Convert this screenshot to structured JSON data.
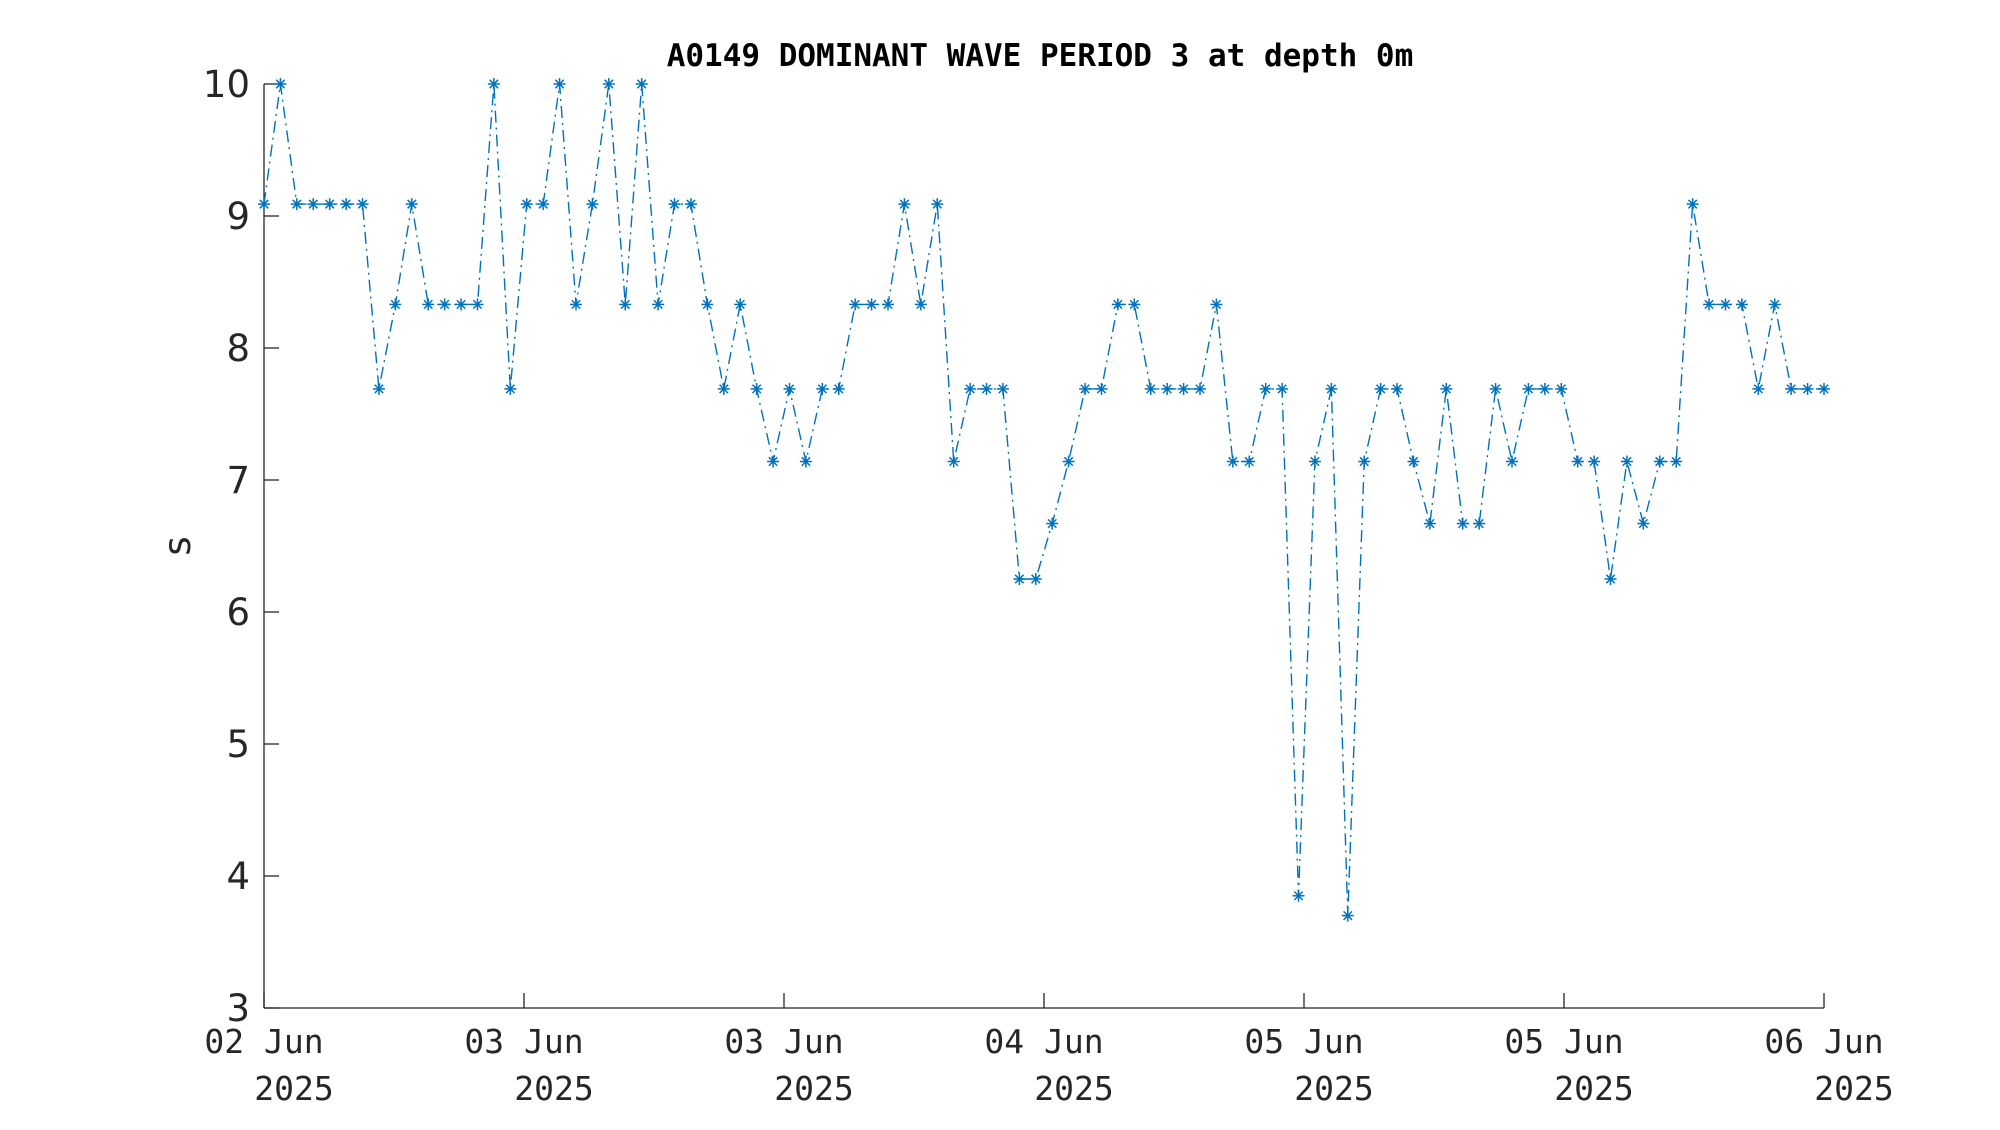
{
  "chart_data": {
    "type": "line",
    "title": "A0149 DOMINANT WAVE PERIOD 3 at depth 0m",
    "xlabel": "",
    "ylabel": "s",
    "ylim": [
      3,
      10
    ],
    "yticks": [
      "3",
      "4",
      "5",
      "6",
      "7",
      "8",
      "9",
      "10"
    ],
    "xticks": [
      {
        "line1": "02 Jun",
        "line2": "2025"
      },
      {
        "line1": "03 Jun",
        "line2": "2025"
      },
      {
        "line1": "03 Jun",
        "line2": "2025"
      },
      {
        "line1": "04 Jun",
        "line2": "2025"
      },
      {
        "line1": "05 Jun",
        "line2": "2025"
      },
      {
        "line1": "05 Jun",
        "line2": "2025"
      },
      {
        "line1": "06 Jun",
        "line2": "2025"
      }
    ],
    "grid": false,
    "legend": "none",
    "line_style": "dash-dot",
    "marker": "asterisk",
    "color": "#0072BD",
    "series": [
      {
        "values": [
          9.09,
          10,
          9.09,
          9.09,
          9.09,
          9.09,
          9.09,
          7.69,
          8.33,
          9.09,
          8.33,
          8.33,
          8.33,
          8.33,
          10,
          7.69,
          9.09,
          9.09,
          10,
          8.33,
          9.09,
          10,
          8.33,
          10,
          8.33,
          9.09,
          9.09,
          8.33,
          7.69,
          8.33,
          7.69,
          7.14,
          7.69,
          7.14,
          7.69,
          7.69,
          8.33,
          8.33,
          8.33,
          9.09,
          8.33,
          9.09,
          7.14,
          7.69,
          7.69,
          7.69,
          6.25,
          6.25,
          6.67,
          7.14,
          7.69,
          7.69,
          8.33,
          8.33,
          7.69,
          7.69,
          7.69,
          7.69,
          8.33,
          7.14,
          7.14,
          7.69,
          7.69,
          3.85,
          7.14,
          7.69,
          3.7,
          7.14,
          7.69,
          7.69,
          7.14,
          6.67,
          7.69,
          6.67,
          6.67,
          7.69,
          7.14,
          7.69,
          7.69,
          7.69,
          7.14,
          7.14,
          6.25,
          7.14,
          6.67,
          7.14,
          7.14,
          9.09,
          8.33,
          8.33,
          8.33,
          7.69,
          8.33,
          7.69,
          7.69,
          7.69
        ]
      }
    ]
  }
}
